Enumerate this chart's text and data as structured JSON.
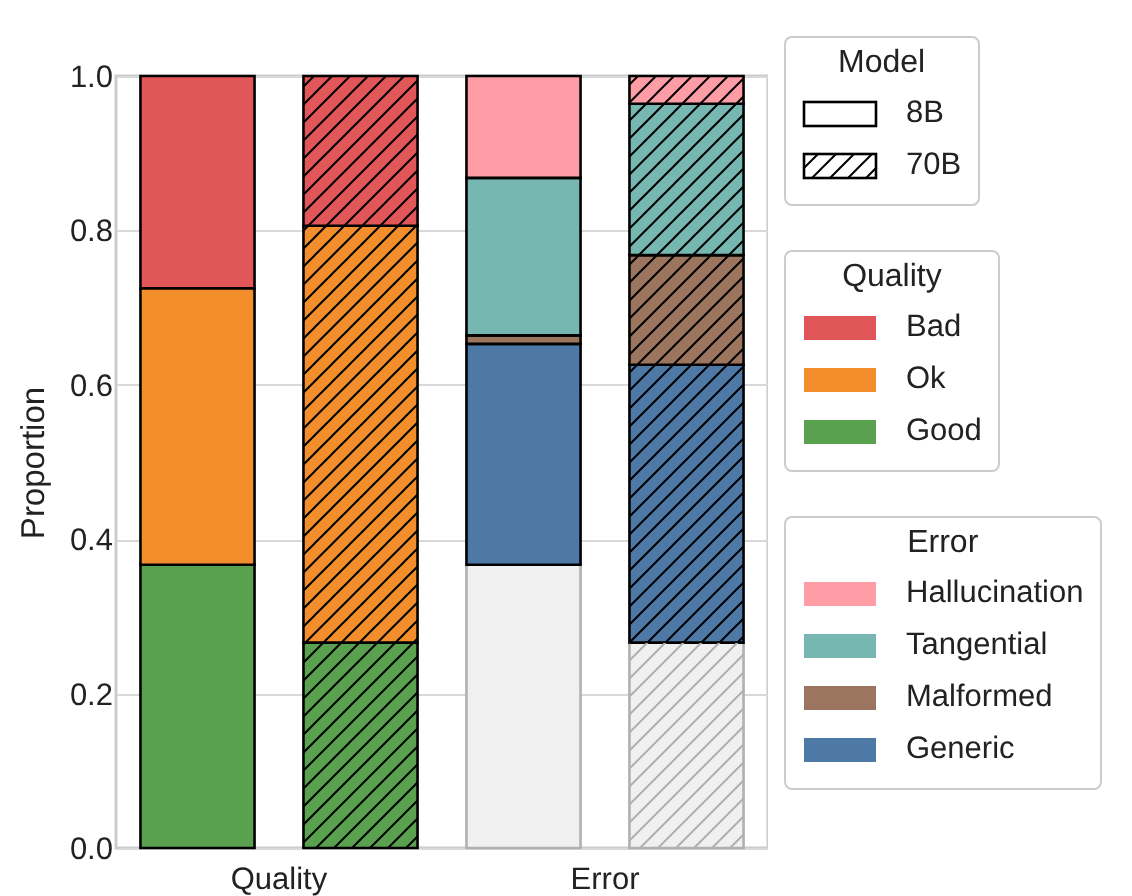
{
  "chart_data": {
    "type": "bar",
    "stacked": true,
    "ylabel": "Proportion",
    "ylim": [
      0,
      1
    ],
    "yticks": [
      {
        "value": 0,
        "label": "0.0"
      },
      0.2,
      0.4,
      0.6,
      0.8,
      {
        "value": 1,
        "label": "1.0"
      }
    ],
    "grid": "y",
    "legend": "right",
    "legend_title": "Model",
    "categories": [
      "Quality",
      null,
      "Error",
      null
    ],
    "series": [
      {
        "name": "8B",
        "values": [
          null,
          null,
          null,
          null
        ]
      },
      {
        "name": "70B",
        "color": "#000000",
        "values": [
          null,
          null,
          null,
          null
        ]
      },
      {
        "name": "Good",
        "color": "#59a14f",
        "values": [
          0.367,
          0.266,
          null,
          null
        ]
      },
      {
        "name": "Ok",
        "color": "#f28e2b",
        "values": [
          0.358,
          0.54,
          null,
          null
        ]
      },
      {
        "name": "Bad",
        "color": "#e15759",
        "values": [
          0.275,
          0.194,
          null,
          null
        ]
      },
      {
        "color": "#f0f0f0",
        "values": [
          null,
          null,
          0.367,
          0.266
        ]
      },
      {
        "name": "Generic",
        "color": "#4e79a7",
        "values": [
          null,
          null,
          0.286,
          0.36
        ]
      },
      {
        "name": "Malformed",
        "color": "#9c755f",
        "values": [
          null,
          null,
          0.011,
          0.142
        ]
      },
      {
        "name": "Tangential",
        "color": "#76b7b2",
        "values": [
          null,
          null,
          0.204,
          0.196
        ]
      },
      {
        "name": "Hallucination",
        "color": "#ff9da7",
        "values": [
          null,
          null,
          0.132,
          0.036
        ]
      }
    ]
  }
}
